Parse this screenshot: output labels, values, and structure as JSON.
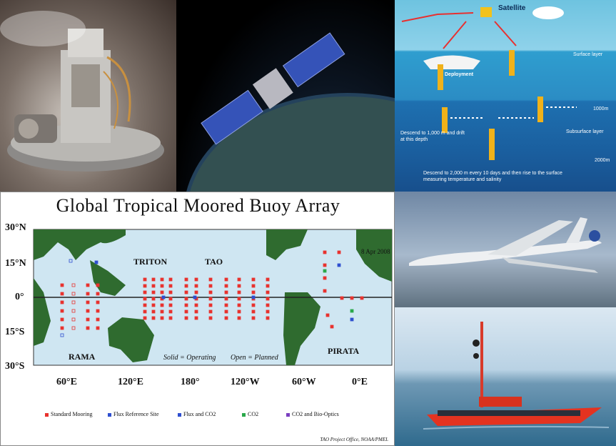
{
  "argo": {
    "satellite": "Satellite",
    "deployment": "Deployment",
    "surface_layer": "Surface layer",
    "depth_1000": "1000m",
    "subsurface_layer": "Subsurface layer",
    "depth_2000": "2000m",
    "descend_1000": "Descend to 1,000 m and drift at this depth",
    "descend_2000": "Descend to 2,000 m every 10 days and then rise to the surface measuring temperature and salinity"
  },
  "map": {
    "title": "Global Tropical Moored Buoy Array",
    "date": "8 Apr 2008",
    "regions": {
      "triton": "TRITON",
      "tao": "TAO",
      "rama": "RAMA",
      "pirata": "PIRATA"
    },
    "status_note": {
      "solid": "Solid = Operating",
      "open": "Open = Planned"
    },
    "lat_labels": [
      "30°N",
      "15°N",
      "0°",
      "15°S",
      "30°S"
    ],
    "lon_labels": [
      "60°E",
      "120°E",
      "180°",
      "120°W",
      "60°W",
      "0°E"
    ],
    "legend": [
      {
        "label": "Standard Mooring",
        "color": "#e8322e"
      },
      {
        "label": "Flux Reference Site",
        "color": "#2f4fd0"
      },
      {
        "label": "Flux and CO2",
        "color": "#2f4fd0"
      },
      {
        "label": "CO2",
        "color": "#2aa84a"
      },
      {
        "label": "CO2 and Bio-Optics",
        "color": "#7a3fc0"
      }
    ],
    "credit": "TAO Project Office, NOAA/PMEL",
    "colors": {
      "ocean": "#cfe6f2",
      "land": "#2f6b2f",
      "standard": "#e8322e",
      "flux": "#2f4fd0",
      "co2": "#2aa84a"
    }
  }
}
